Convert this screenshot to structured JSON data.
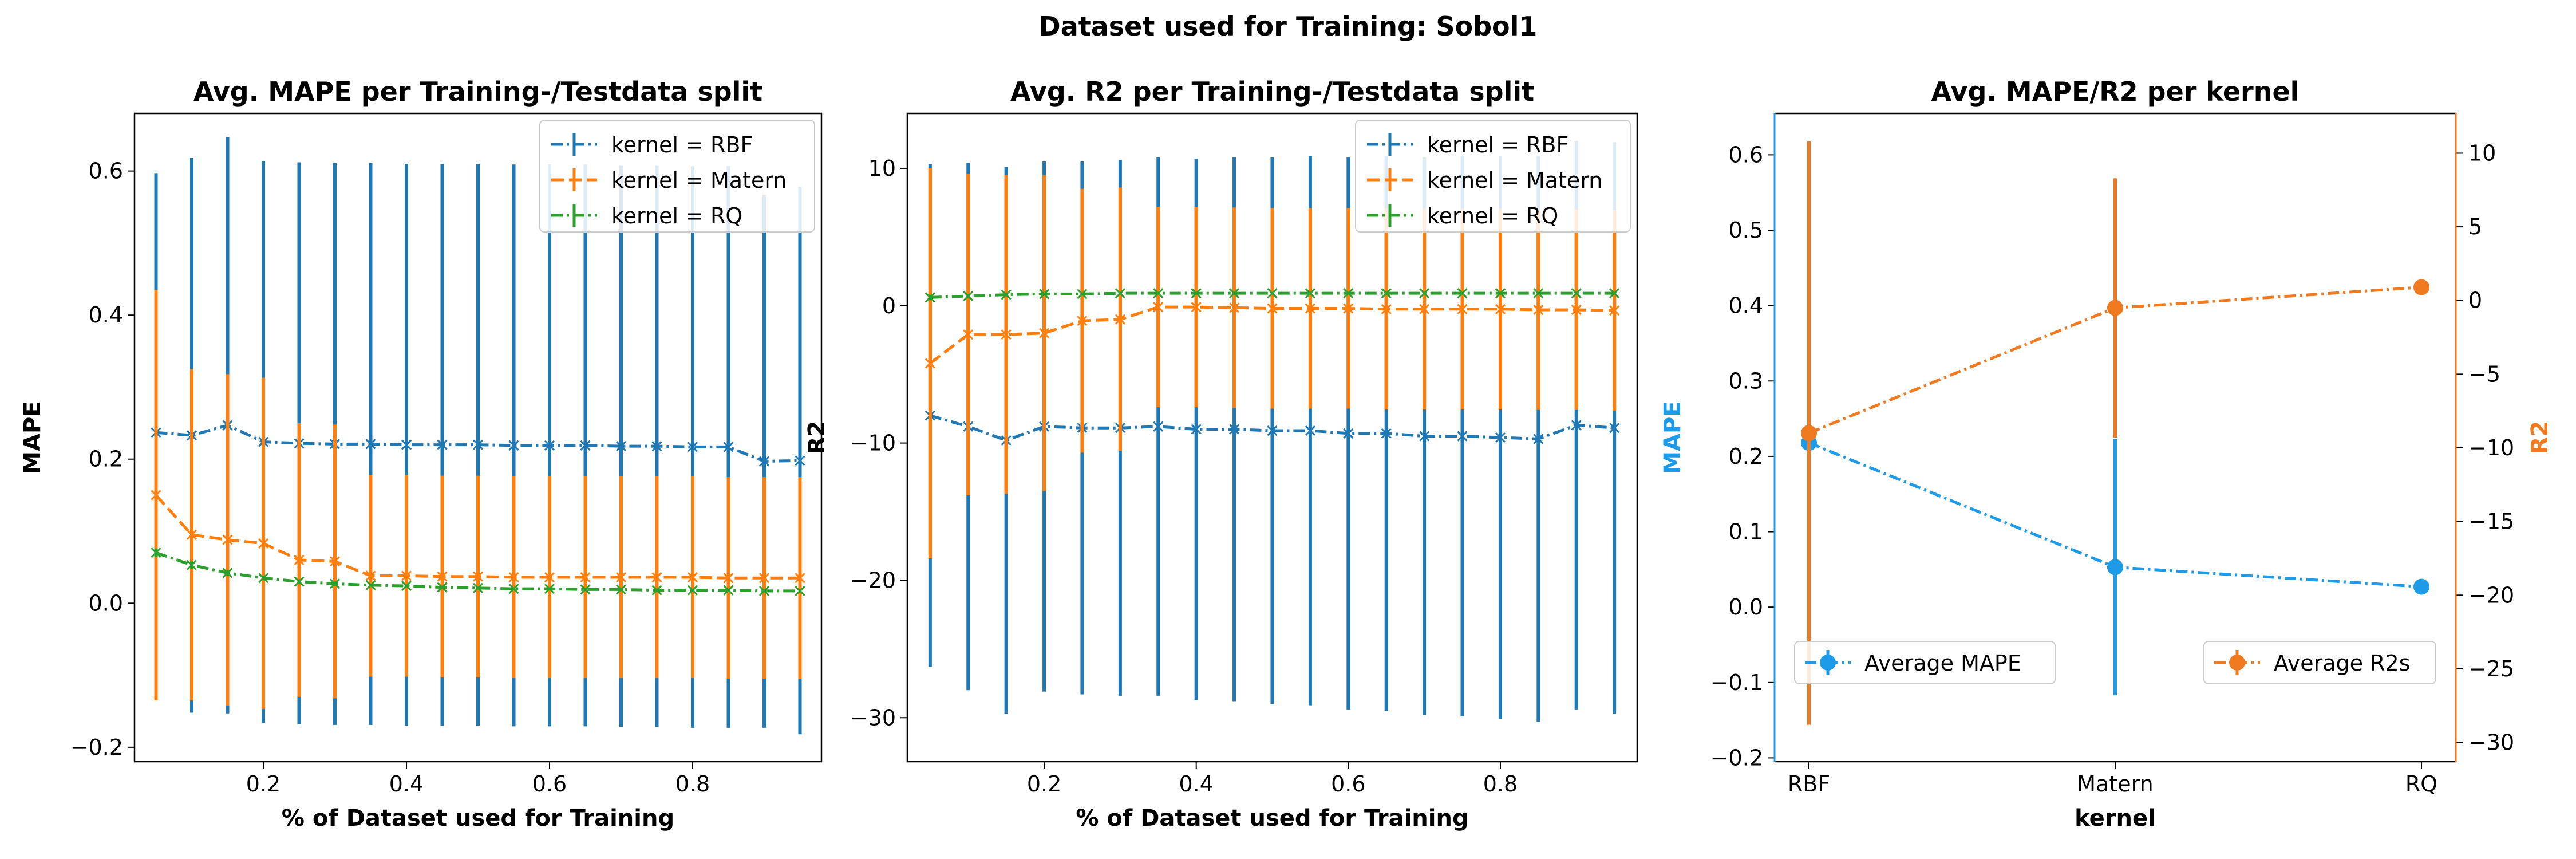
{
  "suptitle": "Dataset used for Training: Sobol1",
  "colors": {
    "rbf": "#1f77b4",
    "matern": "#ff7f0e",
    "rq": "#2ca02c",
    "mape_axis": "#1e9be8",
    "r2_axis": "#f07a1f"
  },
  "chart_data": [
    {
      "type": "line",
      "title": "Avg. MAPE per Training-/Testdata split",
      "xlabel": "% of Dataset used for Training",
      "ylabel": "MAPE",
      "xlim": [
        0.02,
        0.98
      ],
      "ylim": [
        -0.22,
        0.68
      ],
      "xticks": [
        0.2,
        0.4,
        0.6,
        0.8
      ],
      "xtick_labels": [
        "0.2",
        "0.4",
        "0.6",
        "0.8"
      ],
      "yticks": [
        -0.2,
        0.0,
        0.2,
        0.4,
        0.6
      ],
      "ytick_labels": [
        "−0.2",
        "0.0",
        "0.2",
        "0.4",
        "0.6"
      ],
      "legend": {
        "position": "top-right",
        "labels": [
          "kernel = RBF",
          "kernel = Matern",
          "kernel = RQ"
        ]
      },
      "x": [
        0.05,
        0.1,
        0.15,
        0.2,
        0.25,
        0.3,
        0.35,
        0.4,
        0.45,
        0.5,
        0.55,
        0.6,
        0.65,
        0.7,
        0.75,
        0.8,
        0.85,
        0.9,
        0.95
      ],
      "series": [
        {
          "name": "kernel = RBF",
          "color_key": "rbf",
          "dash": "dashdot",
          "values": [
            0.237,
            0.233,
            0.247,
            0.224,
            0.222,
            0.221,
            0.221,
            0.22,
            0.22,
            0.22,
            0.219,
            0.219,
            0.219,
            0.218,
            0.218,
            0.217,
            0.217,
            0.197,
            0.198
          ],
          "err": [
            0.36,
            0.385,
            0.4,
            0.39,
            0.39,
            0.39,
            0.39,
            0.39,
            0.39,
            0.39,
            0.39,
            0.39,
            0.39,
            0.39,
            0.39,
            0.39,
            0.39,
            0.37,
            0.38
          ]
        },
        {
          "name": "kernel = Matern",
          "color_key": "matern",
          "dash": "dashed",
          "values": [
            0.15,
            0.095,
            0.088,
            0.083,
            0.06,
            0.058,
            0.038,
            0.038,
            0.037,
            0.037,
            0.036,
            0.036,
            0.036,
            0.036,
            0.036,
            0.036,
            0.035,
            0.035,
            0.035
          ],
          "err": [
            0.285,
            0.23,
            0.23,
            0.23,
            0.19,
            0.19,
            0.14,
            0.14,
            0.14,
            0.14,
            0.14,
            0.14,
            0.14,
            0.14,
            0.14,
            0.14,
            0.14,
            0.14,
            0.14
          ]
        },
        {
          "name": "kernel = RQ",
          "color_key": "rq",
          "dash": "dashdot",
          "values": [
            0.07,
            0.053,
            0.042,
            0.035,
            0.03,
            0.027,
            0.025,
            0.024,
            0.022,
            0.021,
            0.02,
            0.02,
            0.019,
            0.019,
            0.018,
            0.018,
            0.018,
            0.017,
            0.017
          ],
          "err": [
            0.006,
            0.005,
            0.004,
            0.003,
            0.003,
            0.003,
            0.002,
            0.002,
            0.002,
            0.002,
            0.002,
            0.002,
            0.002,
            0.002,
            0.002,
            0.002,
            0.002,
            0.002,
            0.002
          ]
        }
      ]
    },
    {
      "type": "line",
      "title": "Avg. R2 per Training-/Testdata split",
      "xlabel": "% of Dataset used for Training",
      "ylabel": "R2",
      "xlim": [
        0.02,
        0.98
      ],
      "ylim": [
        -33.2,
        14.0
      ],
      "xticks": [
        0.2,
        0.4,
        0.6,
        0.8
      ],
      "xtick_labels": [
        "0.2",
        "0.4",
        "0.6",
        "0.8"
      ],
      "yticks": [
        -30,
        -20,
        -10,
        0,
        10
      ],
      "ytick_labels": [
        "−30",
        "−20",
        "−10",
        "0",
        "10"
      ],
      "legend": {
        "position": "top-right",
        "labels": [
          "kernel = RBF",
          "kernel = Matern",
          "kernel = RQ"
        ]
      },
      "x": [
        0.05,
        0.1,
        0.15,
        0.2,
        0.25,
        0.3,
        0.35,
        0.4,
        0.45,
        0.5,
        0.55,
        0.6,
        0.65,
        0.7,
        0.75,
        0.8,
        0.85,
        0.9,
        0.95
      ],
      "series": [
        {
          "name": "kernel = RBF",
          "color_key": "rbf",
          "dash": "dashdot",
          "values": [
            -8.0,
            -8.8,
            -9.8,
            -8.8,
            -8.9,
            -8.9,
            -8.8,
            -9.0,
            -9.0,
            -9.1,
            -9.1,
            -9.3,
            -9.3,
            -9.5,
            -9.5,
            -9.6,
            -9.7,
            -8.7,
            -8.9
          ],
          "err": [
            18.3,
            19.2,
            19.9,
            19.3,
            19.4,
            19.5,
            19.6,
            19.7,
            19.8,
            19.9,
            20.0,
            20.1,
            20.2,
            20.3,
            20.4,
            20.5,
            20.6,
            20.7,
            20.8
          ]
        },
        {
          "name": "kernel = Matern",
          "color_key": "matern",
          "dash": "dashed",
          "values": [
            -4.2,
            -2.1,
            -2.1,
            -2.0,
            -1.1,
            -1.0,
            -0.1,
            -0.1,
            -0.15,
            -0.2,
            -0.2,
            -0.2,
            -0.25,
            -0.25,
            -0.25,
            -0.25,
            -0.3,
            -0.3,
            -0.35
          ],
          "err": [
            14.2,
            11.7,
            11.6,
            11.5,
            9.6,
            9.6,
            7.3,
            7.3,
            7.3,
            7.3,
            7.3,
            7.3,
            7.3,
            7.3,
            7.3,
            7.3,
            7.3,
            7.3,
            7.3
          ]
        },
        {
          "name": "kernel = RQ",
          "color_key": "rq",
          "dash": "dashdot",
          "values": [
            0.6,
            0.7,
            0.8,
            0.85,
            0.85,
            0.9,
            0.9,
            0.9,
            0.9,
            0.9,
            0.9,
            0.9,
            0.9,
            0.9,
            0.9,
            0.9,
            0.9,
            0.9,
            0.9
          ],
          "err": [
            0.2,
            0.15,
            0.1,
            0.1,
            0.1,
            0.1,
            0.1,
            0.1,
            0.1,
            0.1,
            0.1,
            0.1,
            0.1,
            0.1,
            0.1,
            0.1,
            0.1,
            0.1,
            0.1
          ]
        }
      ]
    },
    {
      "type": "line",
      "title": "Avg. MAPE/R2 per kernel",
      "xlabel": "kernel",
      "ylabel": "MAPE",
      "ylabel_right": "R2",
      "categories": [
        "RBF",
        "Matern",
        "RQ"
      ],
      "ylim": [
        -0.205,
        0.655
      ],
      "yticks": [
        -0.2,
        -0.1,
        0.0,
        0.1,
        0.2,
        0.3,
        0.4,
        0.5,
        0.6
      ],
      "ytick_labels": [
        "−0.2",
        "−0.1",
        "0.0",
        "0.1",
        "0.2",
        "0.3",
        "0.4",
        "0.5",
        "0.6"
      ],
      "ylim_right": [
        -31.3,
        12.7
      ],
      "yticks_right": [
        -30,
        -25,
        -20,
        -15,
        -10,
        -5,
        0,
        5,
        10
      ],
      "ytick_labels_right": [
        "−30",
        "−25",
        "−20",
        "−15",
        "−10",
        "−5",
        "0",
        "5",
        "10"
      ],
      "legend": {
        "left_label": "Average MAPE",
        "right_label": "Average R2s",
        "left_position": "lower-left",
        "right_position": "lower-right"
      },
      "series": [
        {
          "name": "Average MAPE",
          "axis": "left",
          "color_key": "mape_axis",
          "values": [
            0.218,
            0.053,
            0.027
          ],
          "err": [
            0.0,
            0.17,
            0.006
          ]
        },
        {
          "name": "Average R2s",
          "axis": "right",
          "color_key": "r2_axis",
          "values": [
            -9.0,
            -0.5,
            0.9
          ],
          "err": [
            19.8,
            8.8,
            0.0
          ]
        }
      ]
    }
  ]
}
